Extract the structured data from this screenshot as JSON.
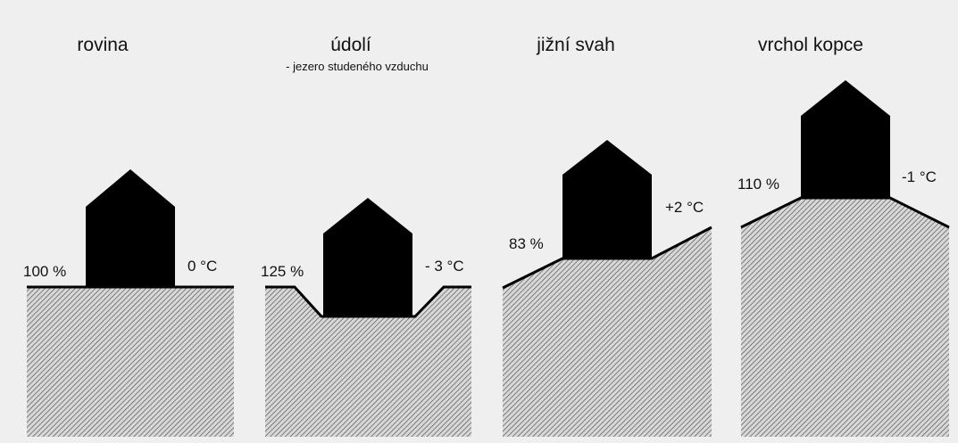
{
  "panels": [
    {
      "title": "rovina",
      "left_label": "100 %",
      "right_label": "0 °C"
    },
    {
      "title": "údolí",
      "subtitle": "- jezero studeného vzduchu",
      "left_label": "125 %",
      "right_label": "- 3 °C"
    },
    {
      "title": "jižní svah",
      "left_label": "83 %",
      "right_label": "+2 °C"
    },
    {
      "title": "vrchol kopce",
      "left_label": "110 %",
      "right_label": "-1 °C"
    }
  ]
}
